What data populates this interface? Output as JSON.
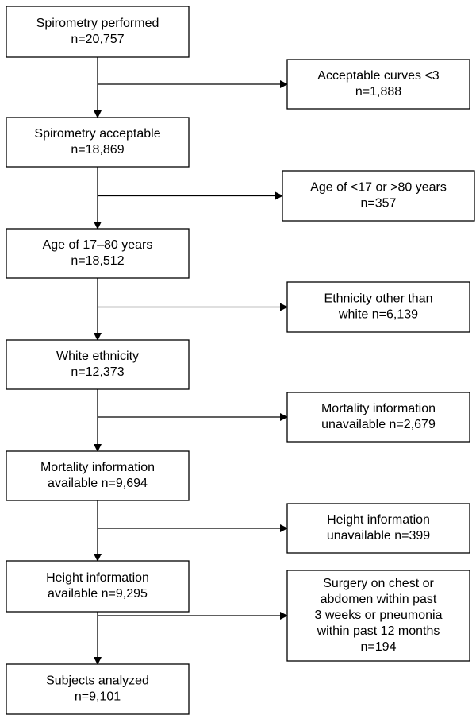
{
  "main_steps": [
    {
      "lines": [
        "Spirometry performed",
        "n=20,757"
      ]
    },
    {
      "lines": [
        "Spirometry acceptable",
        "n=18,869"
      ]
    },
    {
      "lines": [
        "Age of 17–80 years",
        "n=18,512"
      ]
    },
    {
      "lines": [
        "White ethnicity",
        "n=12,373"
      ]
    },
    {
      "lines": [
        "Mortality information",
        "available n=9,694"
      ]
    },
    {
      "lines": [
        "Height information",
        "available n=9,295"
      ]
    },
    {
      "lines": [
        "Subjects analyzed",
        "n=9,101"
      ]
    }
  ],
  "exclusions": [
    {
      "lines": [
        "Acceptable curves <3",
        "n=1,888"
      ]
    },
    {
      "lines": [
        "Age of <17 or >80 years",
        "n=357"
      ]
    },
    {
      "lines": [
        "Ethnicity other than",
        "white n=6,139"
      ]
    },
    {
      "lines": [
        "Mortality information",
        "unavailable n=2,679"
      ]
    },
    {
      "lines": [
        "Height information",
        "unavailable n=399"
      ]
    },
    {
      "lines": [
        "Surgery on chest or",
        "abdomen within past",
        "3 weeks or pneumonia",
        "within past 12 months",
        "n=194"
      ]
    }
  ]
}
